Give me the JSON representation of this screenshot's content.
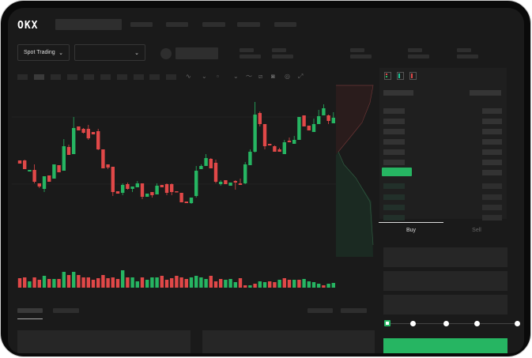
{
  "header": {
    "logo": "OKX",
    "nav_items": [
      "",
      "",
      "",
      "",
      ""
    ]
  },
  "toolbar": {
    "market_dropdown": "Spot Trading",
    "pair_dropdown": "",
    "chevron": "⌄"
  },
  "orderbook": {
    "icons": [
      "both-sides-icon",
      "bids-only-icon",
      "asks-only-icon"
    ]
  },
  "trade_panel": {
    "tabs": [
      "Buy",
      "Sell"
    ],
    "active_tab": "Buy",
    "slider_level": 0
  },
  "colors": {
    "up": "#26b562",
    "down": "#e04848",
    "background": "#1a1a1a"
  },
  "chart_data": {
    "type": "candlestick",
    "fields": [
      "open",
      "high",
      "low",
      "close"
    ],
    "candles": [
      [
        97,
        97,
        93,
        93
      ],
      [
        97,
        98,
        86,
        86
      ],
      [
        83,
        85,
        83,
        85
      ],
      [
        85,
        92,
        68,
        70
      ],
      [
        68,
        68,
        62,
        64
      ],
      [
        61,
        77,
        57,
        77
      ],
      [
        78,
        78,
        70,
        70
      ],
      [
        74,
        92,
        74,
        92
      ],
      [
        91,
        91,
        82,
        82
      ],
      [
        84,
        124,
        84,
        115
      ],
      [
        114,
        117,
        104,
        104
      ],
      [
        105,
        152,
        105,
        138
      ],
      [
        140,
        140,
        135,
        135
      ],
      [
        137,
        138,
        131,
        132
      ],
      [
        137,
        142,
        123,
        125
      ],
      [
        133,
        133,
        130,
        130
      ],
      [
        134,
        137,
        110,
        111
      ],
      [
        111,
        111,
        87,
        87
      ],
      [
        92,
        92,
        86,
        88
      ],
      [
        89,
        89,
        52,
        57
      ],
      [
        58,
        58,
        55,
        55
      ],
      [
        56,
        68,
        53,
        66
      ],
      [
        67,
        69,
        60,
        61
      ],
      [
        61,
        64,
        57,
        64
      ],
      [
        63,
        71,
        63,
        68
      ],
      [
        68,
        68,
        48,
        51
      ],
      [
        51,
        55,
        51,
        55
      ],
      [
        57,
        57,
        50,
        53
      ],
      [
        54,
        68,
        54,
        65
      ],
      [
        66,
        66,
        63,
        63
      ],
      [
        67,
        68,
        53,
        56
      ],
      [
        67,
        68,
        53,
        57
      ],
      [
        58,
        58,
        57,
        57
      ],
      [
        56,
        56,
        44,
        44
      ],
      [
        45,
        45,
        43,
        43
      ],
      [
        43,
        50,
        42,
        50
      ],
      [
        52,
        90,
        50,
        84
      ],
      [
        86,
        92,
        86,
        90
      ],
      [
        90,
        105,
        90,
        100
      ],
      [
        99,
        100,
        87,
        87
      ],
      [
        94,
        98,
        68,
        70
      ],
      [
        67,
        72,
        65,
        70
      ],
      [
        72,
        72,
        67,
        67
      ],
      [
        65,
        69,
        65,
        69
      ],
      [
        71,
        72,
        60,
        69
      ],
      [
        68,
        74,
        66,
        66
      ],
      [
        68,
        95,
        67,
        92
      ],
      [
        91,
        111,
        91,
        108
      ],
      [
        108,
        171,
        107,
        155
      ],
      [
        157,
        159,
        140,
        143
      ],
      [
        143,
        143,
        111,
        115
      ],
      [
        118,
        118,
        116,
        116
      ],
      [
        115,
        116,
        108,
        108
      ],
      [
        111,
        113,
        108,
        108
      ],
      [
        105,
        123,
        105,
        120
      ],
      [
        122,
        126,
        120,
        120
      ],
      [
        118,
        128,
        118,
        123
      ],
      [
        123,
        152,
        123,
        152
      ],
      [
        154,
        154,
        140,
        140
      ],
      [
        141,
        141,
        135,
        135
      ],
      [
        133,
        150,
        133,
        143
      ],
      [
        143,
        161,
        143,
        153
      ],
      [
        154,
        168,
        154,
        163
      ],
      [
        154,
        155,
        143,
        147
      ],
      [
        144,
        158,
        144,
        151
      ]
    ],
    "volume": [
      12,
      13,
      8,
      13,
      10,
      15,
      11,
      11,
      11,
      20,
      16,
      20,
      16,
      13,
      13,
      10,
      12,
      16,
      12,
      13,
      11,
      22,
      13,
      13,
      8,
      13,
      10,
      13,
      13,
      15,
      10,
      12,
      15,
      13,
      11,
      13,
      15,
      13,
      11,
      15,
      8,
      11,
      10,
      11,
      7,
      12,
      3,
      3,
      5,
      8,
      7,
      8,
      7,
      10,
      12,
      10,
      10,
      10,
      11,
      8,
      7,
      5,
      3,
      5,
      6
    ],
    "volume_up": [
      0,
      0,
      1,
      0,
      0,
      1,
      0,
      1,
      0,
      1,
      0,
      1,
      0,
      0,
      0,
      0,
      0,
      0,
      0,
      0,
      0,
      1,
      0,
      1,
      1,
      0,
      1,
      1,
      1,
      0,
      0,
      0,
      0,
      0,
      0,
      1,
      1,
      1,
      1,
      0,
      0,
      0,
      1,
      1,
      1,
      0,
      0,
      1,
      0,
      1,
      1,
      0,
      0,
      1,
      0,
      0,
      1,
      0,
      1,
      1,
      1,
      1,
      0,
      1,
      1
    ]
  }
}
